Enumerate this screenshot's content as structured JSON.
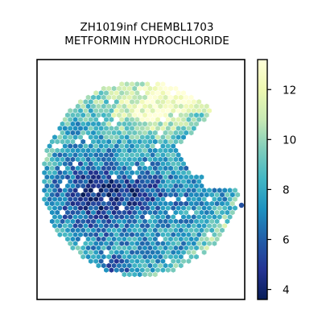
{
  "chart_data": {
    "type": "heatmap",
    "subtype": "hexbin spatial map",
    "title_lines": [
      "ZH1019inf CHEMBL1703",
      "METFORMIN HYDROCHLORIDE"
    ],
    "xlabel": "",
    "ylabel": "",
    "axes_ticks_visible": false,
    "colormap": "YlGnBu_r",
    "colorbar": {
      "ticks": [
        4,
        6,
        8,
        10,
        12
      ],
      "tick_labels": [
        "4",
        "6",
        "8",
        "10",
        "12"
      ],
      "range": [
        3.6,
        13.2
      ]
    },
    "value_range_observed": [
      3.6,
      13.2
    ],
    "colors": {
      "low": "#081d58",
      "mid": "#41b6c4",
      "high": "#ffffd9"
    }
  }
}
